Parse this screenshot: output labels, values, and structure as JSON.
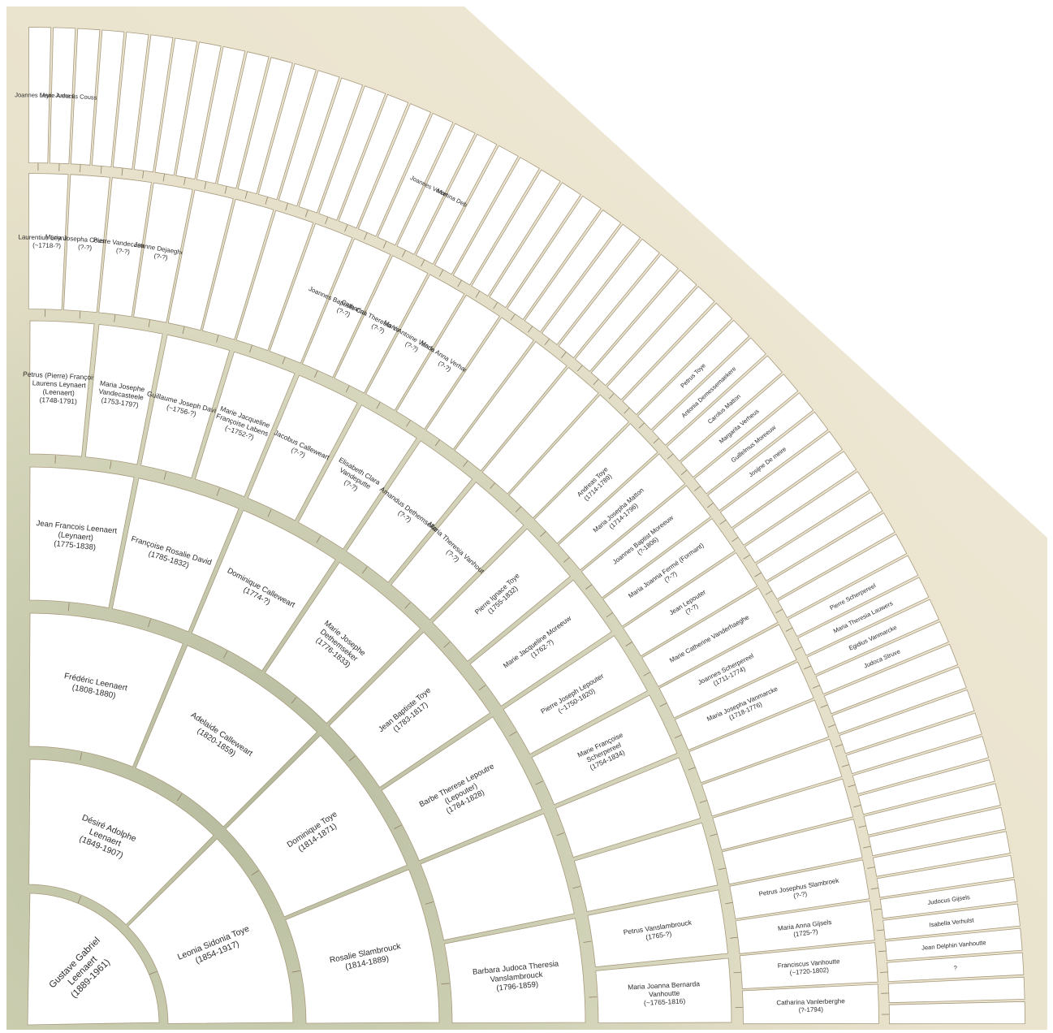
{
  "title": "",
  "colors": {
    "background": "#ffffff",
    "fan_background": "#ece4d1",
    "foliage": "#b9c5a6",
    "cell_fill": "#ffffff",
    "cell_border": "#a89a7e",
    "text": "#2b2b2b"
  },
  "rings": [
    {
      "generation": 1,
      "persons": [
        {
          "pos": 0,
          "name": "Gustave Gabriel Leenaert",
          "dates": "(1889-1961)"
        }
      ]
    },
    {
      "generation": 2,
      "persons": [
        {
          "pos": 0,
          "name": "Désiré Adolphe Leenaert",
          "dates": "(1849-1907)"
        },
        {
          "pos": 1,
          "name": "Leonia Sidonia Toye",
          "dates": "(1854-1917)"
        }
      ]
    },
    {
      "generation": 3,
      "persons": [
        {
          "pos": 0,
          "name": "Frédéric Leenaert",
          "dates": "(1808-1880)"
        },
        {
          "pos": 1,
          "name": "Adelaide Calleweart",
          "dates": "(1820-1859)"
        },
        {
          "pos": 2,
          "name": "Dominique Toye",
          "dates": "(1814-1871)"
        },
        {
          "pos": 3,
          "name": "Rosalie Slambrouck",
          "dates": "(1814-1889)"
        }
      ]
    },
    {
      "generation": 4,
      "persons": [
        {
          "pos": 0,
          "name": "Jean Francois Leenaert (Leynaert)",
          "dates": "(1775-1838)"
        },
        {
          "pos": 1,
          "name": "Françoise Rosalie David",
          "dates": "(1785-1832)"
        },
        {
          "pos": 2,
          "name": "Dominique Calleweart",
          "dates": "(1774-?)"
        },
        {
          "pos": 3,
          "name": "Marie Josephe Dethemseker",
          "dates": "(1776-1833)"
        },
        {
          "pos": 4,
          "name": "Jean Baptiste Toye",
          "dates": "(1783-1817)"
        },
        {
          "pos": 5,
          "name": "Barbe Therese Lepoutre (Lepouter)",
          "dates": "(1784-1828)"
        },
        {
          "pos": 6,
          "name": "",
          "dates": ""
        },
        {
          "pos": 7,
          "name": "Barbara Judoca Theresia Vanslambrouck",
          "dates": "(1796-1859)"
        }
      ]
    },
    {
      "generation": 5,
      "persons": [
        {
          "pos": 0,
          "name": "Petrus (Pierre) François Laurens Leynaert (Leenaert)",
          "dates": "(1748-1791)"
        },
        {
          "pos": 1,
          "name": "Maria Josephe Vandecasteele",
          "dates": "(1753-1797)"
        },
        {
          "pos": 2,
          "name": "Guillaume Joseph David",
          "dates": "(~1756-?)"
        },
        {
          "pos": 3,
          "name": "Marie Jacqueline Françoise Labens",
          "dates": "(~1752-?)"
        },
        {
          "pos": 4,
          "name": "Jacobus Calleweart",
          "dates": "(?-?)"
        },
        {
          "pos": 5,
          "name": "Elisabeth Clara Vandeputte",
          "dates": "(?-?)"
        },
        {
          "pos": 6,
          "name": "Amandus Dethemseker",
          "dates": "(?-?)"
        },
        {
          "pos": 7,
          "name": "Maria Theresia Vanhoutte",
          "dates": "(?-?)"
        },
        {
          "pos": 8,
          "name": "Pierre Ignace Toye",
          "dates": "(1755-1832)"
        },
        {
          "pos": 9,
          "name": "Marie Jacqueline Moreeuw",
          "dates": "(1762-?)"
        },
        {
          "pos": 10,
          "name": "Pierre Joseph Lepouter",
          "dates": "(~1750-1820)"
        },
        {
          "pos": 11,
          "name": "Marie Françoise Scherpereel",
          "dates": "(1754-1834)"
        },
        {
          "pos": 12,
          "name": "",
          "dates": ""
        },
        {
          "pos": 13,
          "name": "",
          "dates": ""
        },
        {
          "pos": 14,
          "name": "Petrus Vanslambrouck",
          "dates": "(1765-?)"
        },
        {
          "pos": 15,
          "name": "Maria Joanna Bernarda Vanhoutte",
          "dates": "(~1765-1816)"
        }
      ]
    },
    {
      "generation": 6,
      "persons": [
        {
          "pos": 0,
          "name": "Laurentius Leynaert",
          "dates": "(~1718-?)"
        },
        {
          "pos": 1,
          "name": "Maria Josepha Coussement",
          "dates": "(?-?)"
        },
        {
          "pos": 2,
          "name": "Pierre Vandecasteele",
          "dates": "(?-?)"
        },
        {
          "pos": 3,
          "name": "Jeanne Dejaeghere",
          "dates": "(?-?)"
        },
        {
          "pos": 8,
          "name": "Joannes Baptiste Calleweart",
          "dates": "(?-?)"
        },
        {
          "pos": 9,
          "name": "Catharina Theresia Vercruysse",
          "dates": "(?-?)"
        },
        {
          "pos": 10,
          "name": "Marc Antoine Vandeputte",
          "dates": "(?-?)"
        },
        {
          "pos": 11,
          "name": "Maria Anna Verhamme",
          "dates": "(?-?)"
        },
        {
          "pos": 16,
          "name": "Andreas Toye",
          "dates": "(1714-1789)"
        },
        {
          "pos": 17,
          "name": "Maria Josepha Matton",
          "dates": "(1714-1796)"
        },
        {
          "pos": 18,
          "name": "Joannes Baptist Moreeuw",
          "dates": "(?-1806)"
        },
        {
          "pos": 19,
          "name": "Maria Joanna Fermé (Formant)",
          "dates": "(?-?)"
        },
        {
          "pos": 20,
          "name": "Jean Lepouter",
          "dates": "(?-?)"
        },
        {
          "pos": 21,
          "name": "Marie Catherine Vanderhaeghe",
          "dates": ""
        },
        {
          "pos": 22,
          "name": "Joannes Scherpereel",
          "dates": "(1711-1774)"
        },
        {
          "pos": 23,
          "name": "Maria Josepha Vanmarcke",
          "dates": "(1718-1776)"
        },
        {
          "pos": 28,
          "name": "Petrus Josephus Slambroek",
          "dates": "(?-?)"
        },
        {
          "pos": 29,
          "name": "Maria Anna Gijsels",
          "dates": "(1725-?)"
        },
        {
          "pos": 30,
          "name": "Franciscus Vanhoutte",
          "dates": "(~1720-1802)"
        },
        {
          "pos": 31,
          "name": "Catharina Vanlerberghe",
          "dates": "(?-1794)"
        }
      ]
    },
    {
      "generation": 7,
      "persons": [
        {
          "pos": 0,
          "name": "Joannes Leynaert",
          "dates": ""
        },
        {
          "pos": 1,
          "name": "Marie Anne Bels",
          "dates": ""
        },
        {
          "pos": 2,
          "name": "Judocus Coussement",
          "dates": ""
        },
        {
          "pos": 18,
          "name": "Joannes Vercruysse",
          "dates": ""
        },
        {
          "pos": 19,
          "name": "Martina Debrief",
          "dates": ""
        },
        {
          "pos": 32,
          "name": "Petrus Toye",
          "dates": ""
        },
        {
          "pos": 33,
          "name": "Antonia Demessemaekere",
          "dates": ""
        },
        {
          "pos": 34,
          "name": "Carolus Matton",
          "dates": ""
        },
        {
          "pos": 35,
          "name": "Margarita Verheus",
          "dates": ""
        },
        {
          "pos": 36,
          "name": "Guillelmus Moreeuw",
          "dates": ""
        },
        {
          "pos": 37,
          "name": "Josijne De meire",
          "dates": ""
        },
        {
          "pos": 44,
          "name": "Pierre Scherpereel",
          "dates": ""
        },
        {
          "pos": 45,
          "name": "Maria Theresia Lauwers",
          "dates": ""
        },
        {
          "pos": 46,
          "name": "Egidius Vanmarcke",
          "dates": ""
        },
        {
          "pos": 47,
          "name": "Judoca Struve",
          "dates": ""
        },
        {
          "pos": 58,
          "name": "Judocus Gijsels",
          "dates": ""
        },
        {
          "pos": 59,
          "name": "Isabella Verhulst",
          "dates": ""
        },
        {
          "pos": 60,
          "name": "Jean Delphin Vanhoutte",
          "dates": ""
        },
        {
          "pos": 61,
          "name": "?",
          "dates": ""
        }
      ]
    }
  ]
}
